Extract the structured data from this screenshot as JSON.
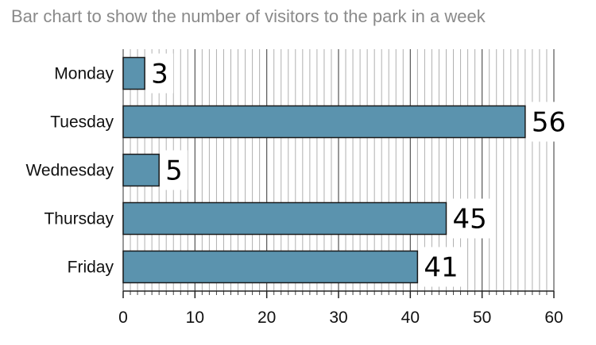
{
  "chart_data": {
    "type": "bar",
    "orientation": "horizontal",
    "title": "Bar chart to show the number of visitors to the park in a week",
    "xlabel": "",
    "ylabel": "",
    "categories": [
      "Monday",
      "Tuesday",
      "Wednesday",
      "Thursday",
      "Friday"
    ],
    "values": [
      3,
      56,
      5,
      45,
      41
    ],
    "xlim": [
      0,
      60
    ],
    "x_ticks": [
      0,
      10,
      20,
      30,
      40,
      50,
      60
    ],
    "minor_tick_step": 1,
    "grid": true,
    "data_labels": true,
    "colors": {
      "bar": "#5b93ae",
      "bar_edge": "#1a1a1a",
      "grid_major": "#555555",
      "grid_minor": "#b0b0b0",
      "title": "#8a8a8a"
    }
  }
}
